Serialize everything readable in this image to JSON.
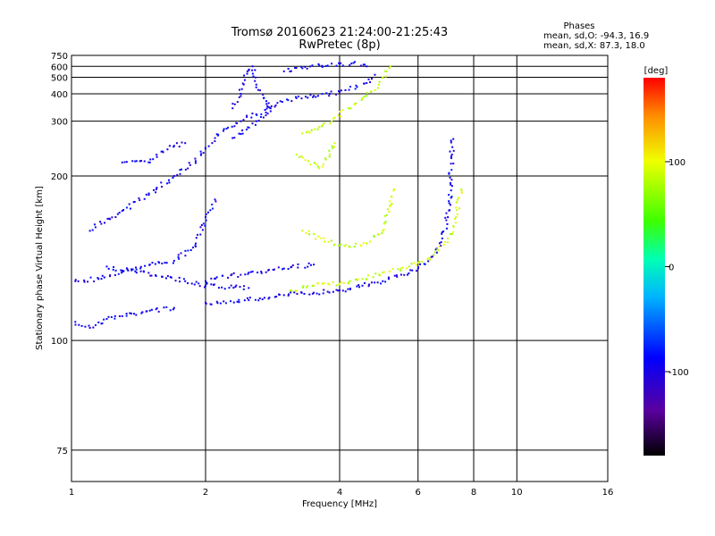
{
  "header": {
    "title_line1": "Tromsø 20160623 21:24:00-21:25:43",
    "title_line2": "RwPretec (8p)"
  },
  "stats": {
    "heading": "Phases",
    "line_o": "mean, sd,O: -94.3, 16.9",
    "line_x": "mean, sd,X: 87.3, 18.0"
  },
  "colorbar": {
    "unit_label": "[deg]",
    "ticks": [
      {
        "value": 100,
        "label": "100"
      },
      {
        "value": 0,
        "label": "0"
      },
      {
        "value": -100,
        "label": "-100"
      }
    ],
    "range": [
      -180,
      180
    ]
  },
  "chart_data": {
    "type": "scatter",
    "title": "Tromsø 20160623 21:24:00-21:25:43",
    "subtitle": "RwPretec (8p)",
    "xlabel": "Frequency [MHz]",
    "ylabel": "Stationary phase Virtual Height [km]",
    "x_scale": "log",
    "y_scale": "reciprocal",
    "xlim": [
      1,
      16
    ],
    "ylim": [
      70,
      750
    ],
    "x_ticks": [
      {
        "value": 1,
        "label": "1"
      },
      {
        "value": 2,
        "label": "2"
      },
      {
        "value": 4,
        "label": "4"
      },
      {
        "value": 6,
        "label": "6"
      },
      {
        "value": 8,
        "label": "8"
      },
      {
        "value": 10,
        "label": "10"
      },
      {
        "value": 16,
        "label": "16"
      }
    ],
    "y_ticks": [
      {
        "value": 75,
        "label": "75"
      },
      {
        "value": 100,
        "label": "100"
      },
      {
        "value": 200,
        "label": "200"
      },
      {
        "value": 300,
        "label": "300"
      },
      {
        "value": 400,
        "label": "400"
      },
      {
        "value": 500,
        "label": "500"
      },
      {
        "value": 600,
        "label": "600"
      },
      {
        "value": 750,
        "label": "750"
      }
    ],
    "grid": true,
    "color_variable": "phase [deg]",
    "traces": [
      {
        "mode": "O",
        "phase_deg": -95,
        "points": [
          [
            1.02,
            106
          ],
          [
            1.1,
            104
          ],
          [
            1.2,
            107
          ],
          [
            1.3,
            108
          ],
          [
            1.5,
            110
          ],
          [
            1.7,
            111
          ]
        ]
      },
      {
        "mode": "O",
        "phase_deg": -95,
        "points": [
          [
            1.02,
            122
          ],
          [
            1.15,
            123
          ],
          [
            1.3,
            127
          ],
          [
            1.5,
            130
          ],
          [
            1.7,
            132
          ],
          [
            1.9,
            140
          ],
          [
            2.0,
            160
          ],
          [
            2.1,
            175
          ]
        ]
      },
      {
        "mode": "O",
        "phase_deg": -95,
        "points": [
          [
            1.2,
            129
          ],
          [
            1.4,
            126
          ],
          [
            1.6,
            124
          ],
          [
            1.8,
            122
          ],
          [
            2.0,
            120
          ],
          [
            2.5,
            119
          ]
        ]
      },
      {
        "mode": "O",
        "phase_deg": -95,
        "points": [
          [
            2.0,
            113
          ],
          [
            2.5,
            114
          ],
          [
            3.0,
            116
          ],
          [
            3.5,
            117
          ],
          [
            4.0,
            118
          ],
          [
            4.5,
            120
          ],
          [
            5.0,
            122
          ],
          [
            5.5,
            125
          ],
          [
            6.0,
            128
          ],
          [
            6.5,
            135
          ],
          [
            6.8,
            145
          ],
          [
            7.0,
            160
          ],
          [
            7.1,
            190
          ],
          [
            7.15,
            230
          ],
          [
            7.2,
            258
          ]
        ]
      },
      {
        "mode": "O",
        "phase_deg": -95,
        "points": [
          [
            2.0,
            122
          ],
          [
            2.5,
            126
          ],
          [
            3.0,
            128
          ],
          [
            3.5,
            130
          ]
        ]
      },
      {
        "mode": "O",
        "phase_deg": -95,
        "points": [
          [
            1.1,
            150
          ],
          [
            1.3,
            165
          ],
          [
            1.55,
            185
          ],
          [
            1.7,
            200
          ],
          [
            1.9,
            220
          ],
          [
            2.0,
            240
          ],
          [
            2.1,
            260
          ],
          [
            2.2,
            280
          ],
          [
            2.4,
            300
          ],
          [
            2.6,
            320
          ],
          [
            2.8,
            340
          ]
        ]
      },
      {
        "mode": "O",
        "phase_deg": -95,
        "points": [
          [
            1.3,
            218
          ],
          [
            1.4,
            220
          ],
          [
            1.5,
            218
          ],
          [
            1.6,
            235
          ],
          [
            1.7,
            245
          ],
          [
            1.8,
            250
          ]
        ]
      },
      {
        "mode": "O",
        "phase_deg": -95,
        "points": [
          [
            2.3,
            260
          ],
          [
            2.6,
            300
          ],
          [
            2.9,
            360
          ],
          [
            3.2,
            380
          ],
          [
            3.5,
            390
          ],
          [
            3.8,
            400
          ],
          [
            4.2,
            420
          ],
          [
            4.6,
            460
          ],
          [
            4.8,
            520
          ]
        ]
      },
      {
        "mode": "O",
        "phase_deg": -95,
        "points": [
          [
            3.0,
            550
          ],
          [
            3.3,
            580
          ],
          [
            3.6,
            610
          ],
          [
            4.0,
            630
          ],
          [
            4.3,
            640
          ],
          [
            4.6,
            600
          ]
        ]
      },
      {
        "mode": "O",
        "phase_deg": -95,
        "points": [
          [
            2.3,
            340
          ],
          [
            2.4,
            400
          ],
          [
            2.45,
            480
          ],
          [
            2.5,
            560
          ],
          [
            2.55,
            600
          ],
          [
            2.6,
            450
          ],
          [
            2.7,
            380
          ],
          [
            2.8,
            330
          ]
        ]
      },
      {
        "mode": "X",
        "phase_deg": 87,
        "points": [
          [
            3.1,
            118
          ],
          [
            3.5,
            120
          ],
          [
            4.0,
            121
          ],
          [
            4.5,
            123
          ],
          [
            5.0,
            126
          ],
          [
            5.5,
            128
          ],
          [
            6.0,
            131
          ],
          [
            6.5,
            135
          ],
          [
            7.0,
            145
          ],
          [
            7.3,
            160
          ],
          [
            7.5,
            185
          ]
        ]
      },
      {
        "mode": "X",
        "phase_deg": 87,
        "points": [
          [
            3.3,
            150
          ],
          [
            3.7,
            143
          ],
          [
            4.2,
            140
          ],
          [
            4.6,
            142
          ],
          [
            5.0,
            150
          ],
          [
            5.2,
            170
          ],
          [
            5.3,
            185
          ]
        ]
      },
      {
        "mode": "X",
        "phase_deg": 87,
        "points": [
          [
            3.3,
            270
          ],
          [
            3.6,
            285
          ],
          [
            3.9,
            310
          ],
          [
            4.2,
            340
          ],
          [
            4.5,
            380
          ],
          [
            4.7,
            410
          ],
          [
            4.9,
            450
          ],
          [
            5.0,
            500
          ],
          [
            5.1,
            550
          ],
          [
            5.2,
            600
          ]
        ]
      },
      {
        "mode": "X",
        "phase_deg": 87,
        "points": [
          [
            3.2,
            230
          ],
          [
            3.4,
            220
          ],
          [
            3.6,
            210
          ],
          [
            3.8,
            230
          ],
          [
            3.9,
            250
          ]
        ]
      }
    ]
  }
}
